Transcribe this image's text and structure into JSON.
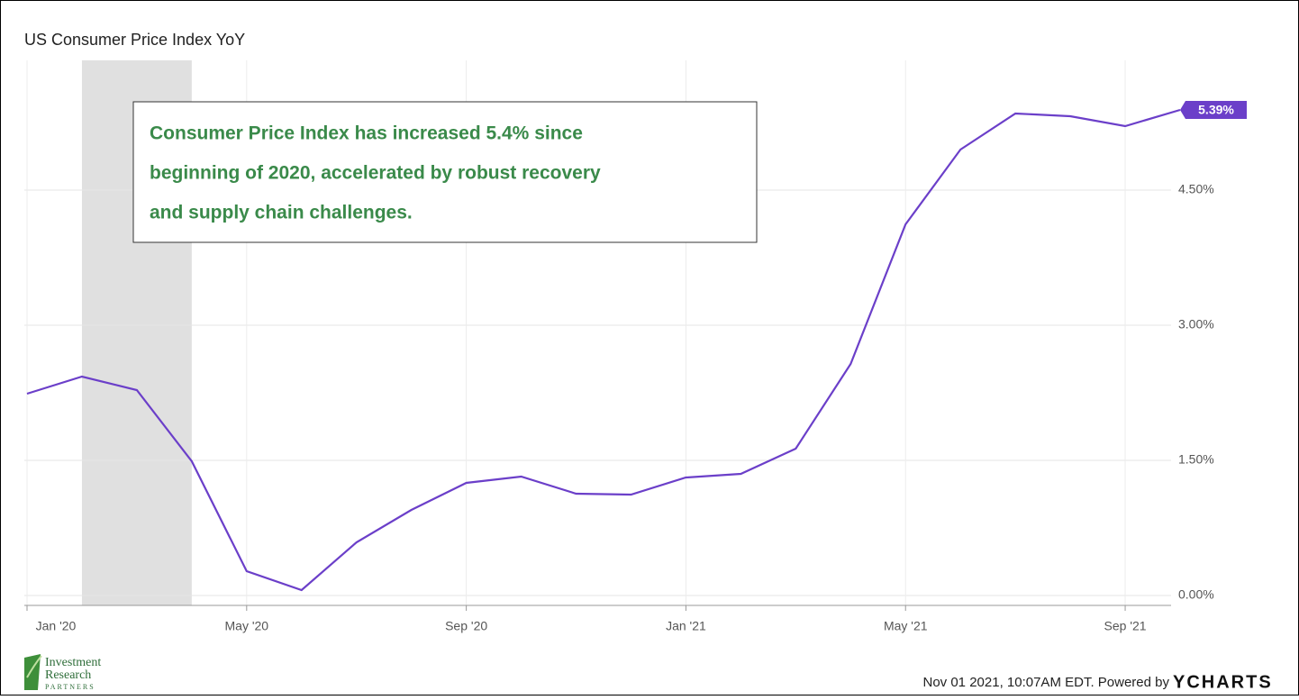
{
  "chart_data": {
    "type": "line",
    "title": "US Consumer Price Index YoY",
    "annotation": [
      "Consumer Price Index has increased 5.4% since",
      "beginning of 2020, accelerated by robust recovery",
      "and supply chain challenges."
    ],
    "categories": [
      "Jan '20",
      null,
      null,
      null,
      "May '20",
      null,
      null,
      null,
      "Sep '20",
      null,
      null,
      null,
      "Jan '21",
      null,
      null,
      null,
      "May '21",
      null,
      null,
      null,
      "Sep '21",
      null
    ],
    "series": [
      {
        "name": "US Consumer Price Index YoY",
        "color": "#6b3fc9",
        "values": [
          2.24,
          2.43,
          2.28,
          1.49,
          0.27,
          0.06,
          0.59,
          0.95,
          1.25,
          1.32,
          1.13,
          1.12,
          1.31,
          1.35,
          1.63,
          2.57,
          4.12,
          4.95,
          5.35,
          5.32,
          5.21,
          5.39
        ],
        "value_labels": [
          null,
          null,
          null,
          null,
          null,
          null,
          null,
          null,
          null,
          null,
          null,
          null,
          null,
          null,
          null,
          null,
          null,
          null,
          null,
          null,
          null,
          "5.39%"
        ]
      }
    ],
    "shaded_range": [
      1,
      3
    ],
    "ylim": [
      -0.11,
      5.94
    ],
    "yticks": [
      {
        "value": 0,
        "label": "0.00%"
      },
      {
        "value": 1.5,
        "label": "1.50%"
      },
      {
        "value": 3,
        "label": "3.00%"
      },
      {
        "value": 4.5,
        "label": "4.50%"
      }
    ],
    "grid": true,
    "footer": {
      "logo": [
        "Investment",
        "Research",
        "PARTNERS"
      ],
      "timestamp": "Nov 01 2021, 10:07AM EDT. Powered by",
      "brand": "YCHARTS"
    }
  }
}
